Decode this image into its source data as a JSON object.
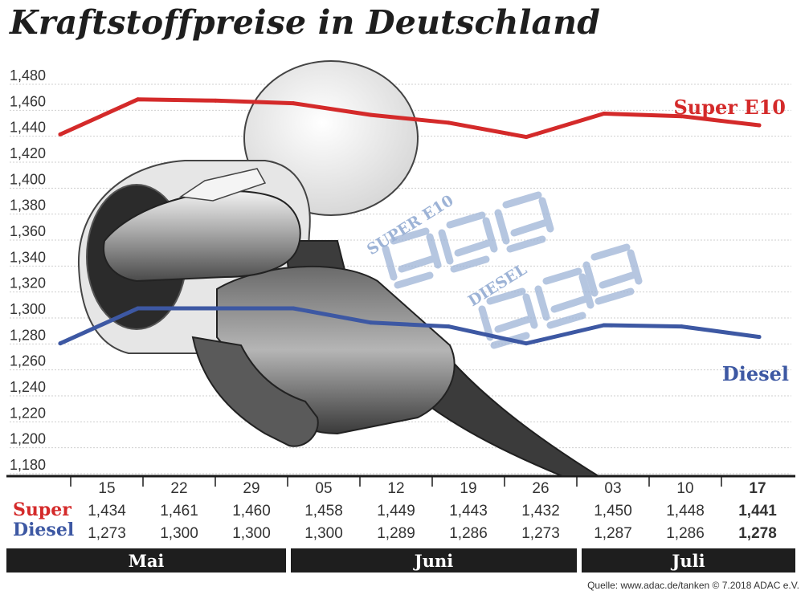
{
  "header": {
    "title": "Kraftstoffpreise in Deutschland"
  },
  "chart_data": {
    "type": "line",
    "title": "Kraftstoffpreise in Deutschland",
    "xlabel": "",
    "ylabel": "",
    "x": [
      "15",
      "22",
      "29",
      "05",
      "12",
      "19",
      "26",
      "03",
      "10",
      "17"
    ],
    "ylim": [
      1.17,
      1.49
    ],
    "yticks": [
      "1,180",
      "1,200",
      "1,220",
      "1,240",
      "1,260",
      "1,280",
      "1,300",
      "1,320",
      "1,340",
      "1,360",
      "1,380",
      "1,400",
      "1,420",
      "1,440",
      "1,460",
      "1,480"
    ],
    "ytick_values": [
      1.18,
      1.2,
      1.22,
      1.24,
      1.26,
      1.28,
      1.3,
      1.32,
      1.34,
      1.36,
      1.38,
      1.4,
      1.42,
      1.44,
      1.46,
      1.48
    ],
    "grid": true,
    "series": [
      {
        "name": "Super E10",
        "row_label": "Super",
        "color": "#d42a2a",
        "values": [
          1.434,
          1.461,
          1.46,
          1.458,
          1.449,
          1.443,
          1.432,
          1.45,
          1.448,
          1.441
        ],
        "labels": [
          "1,434",
          "1,461",
          "1,460",
          "1,458",
          "1,449",
          "1,443",
          "1,432",
          "1,450",
          "1,448",
          "1,441"
        ]
      },
      {
        "name": "Diesel",
        "row_label": "Diesel",
        "color": "#3d58a3",
        "values": [
          1.273,
          1.3,
          1.3,
          1.3,
          1.289,
          1.286,
          1.273,
          1.287,
          1.286,
          1.278
        ],
        "labels": [
          "1,273",
          "1,300",
          "1,300",
          "1,300",
          "1,289",
          "1,286",
          "1,273",
          "1,287",
          "1,286",
          "1,278"
        ]
      }
    ],
    "months": [
      "Mai",
      "Juni",
      "Juli"
    ],
    "latest_index": 9
  },
  "illustration": {
    "display_labels": [
      "SUPER E10",
      "DIESEL"
    ],
    "display_digits": [
      "888",
      "888"
    ]
  },
  "footer": {
    "source": "Quelle: www.adac.de/tanken   © 7.2018  ADAC e.V."
  }
}
